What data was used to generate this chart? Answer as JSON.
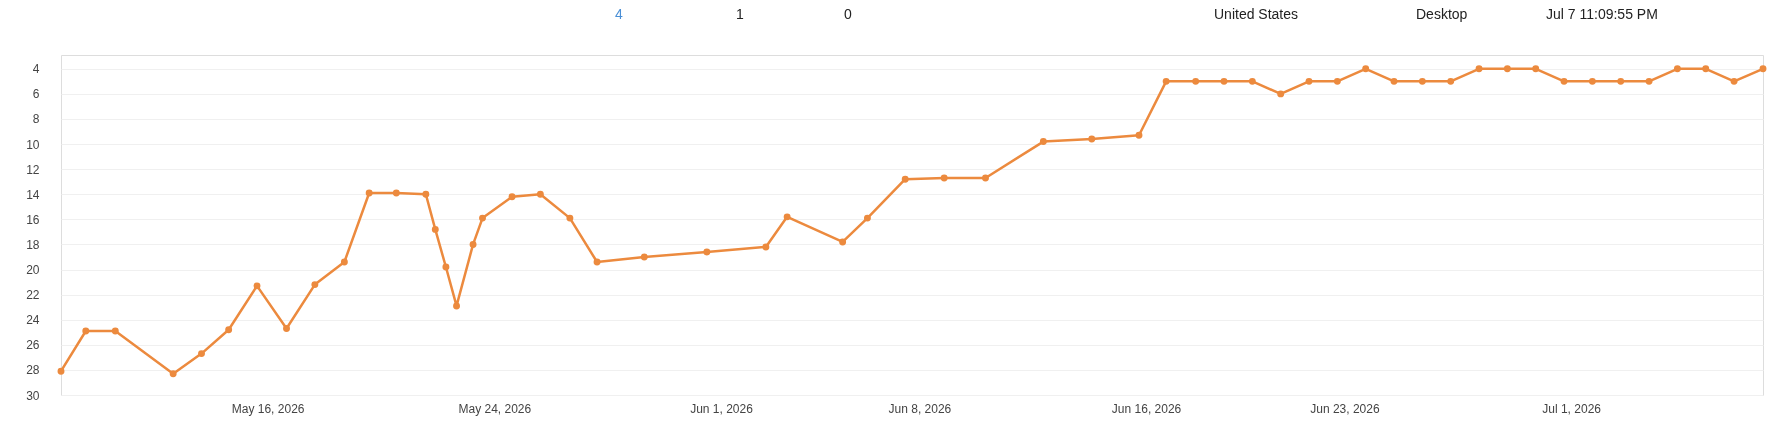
{
  "chart_data": {
    "type": "line",
    "annotations": [
      "4",
      "1",
      "0",
      "United States",
      "Desktop",
      "Jul 7 11:09:55 PM"
    ],
    "x": [
      "2026-05-08T17:00",
      "2026-05-09T14:00",
      "2026-05-10T15:00",
      "2026-05-12T16:00",
      "2026-05-13T16:00",
      "2026-05-14T15:00",
      "2026-05-15T15:00",
      "2026-05-16T16:00",
      "2026-05-17T16:00",
      "2026-05-18T17:00",
      "2026-05-19T14:00",
      "2026-05-20T13:00",
      "2026-05-21T14:00",
      "2026-05-21T22:00",
      "2026-05-22T07:00",
      "2026-05-22T16:00",
      "2026-05-23T06:00",
      "2026-05-23T14:00",
      "2026-05-24T15:00",
      "2026-05-25T15:00",
      "2026-05-26T16:00",
      "2026-05-27T15:00",
      "2026-05-29T07:00",
      "2026-05-31T12:00",
      "2026-06-02T14:00",
      "2026-06-03T08:00",
      "2026-06-05T07:00",
      "2026-06-06T04:00",
      "2026-06-07T12:00",
      "2026-06-08T21:00",
      "2026-06-10T08:00",
      "2026-06-12T09:00",
      "2026-06-14T02:00",
      "2026-06-15T18:00",
      "2026-06-16T17:00",
      "2026-06-17T18:00",
      "2026-06-18T18:00",
      "2026-06-19T18:00",
      "2026-06-20T18:00",
      "2026-06-21T18:00",
      "2026-06-22T18:00",
      "2026-06-23T18:00",
      "2026-06-24T18:00",
      "2026-06-25T18:00",
      "2026-06-26T18:00",
      "2026-06-27T18:00",
      "2026-06-28T18:00",
      "2026-06-29T18:00",
      "2026-06-30T18:00",
      "2026-07-01T18:00",
      "2026-07-02T18:00",
      "2026-07-03T18:00",
      "2026-07-04T18:00",
      "2026-07-05T18:00",
      "2026-07-06T18:00",
      "2026-07-07T18:30"
    ],
    "series": [
      {
        "color": "#ec8a3e",
        "values": [
          28.1,
          24.9,
          24.9,
          28.3,
          26.7,
          24.8,
          21.3,
          24.7,
          21.2,
          19.4,
          13.9,
          13.9,
          14.0,
          16.8,
          19.8,
          22.9,
          18.0,
          15.9,
          14.2,
          14.0,
          15.9,
          19.4,
          19.0,
          18.6,
          18.2,
          15.8,
          17.8,
          15.9,
          12.8,
          12.7,
          12.7,
          9.8,
          9.6,
          9.3,
          5,
          5,
          5,
          5,
          6,
          5,
          5,
          4,
          5,
          5,
          5,
          4,
          4,
          4,
          5,
          5,
          5,
          5,
          4,
          4,
          5,
          4
        ]
      }
    ],
    "xlim": [
      "2026-05-08T17:00",
      "2026-07-07T18:30"
    ],
    "xticks": [
      {
        "value": "2026-05-16",
        "label": "May 16, 2026"
      },
      {
        "value": "2026-05-24",
        "label": "May 24, 2026"
      },
      {
        "value": "2026-06-01",
        "label": "Jun 1, 2026"
      },
      {
        "value": "2026-06-08",
        "label": "Jun 8, 2026"
      },
      {
        "value": "2026-06-16",
        "label": "Jun 16, 2026"
      },
      {
        "value": "2026-06-23",
        "label": "Jun 23, 2026"
      },
      {
        "value": "2026-07-01",
        "label": "Jul 1, 2026"
      }
    ],
    "ylim": [
      30,
      2.9
    ],
    "yticks": [
      4,
      6,
      8,
      10,
      12,
      14,
      16,
      18,
      20,
      22,
      24,
      26,
      28,
      30
    ],
    "grid": "y",
    "legend": false,
    "marker": "circle",
    "line_style": "solid"
  }
}
